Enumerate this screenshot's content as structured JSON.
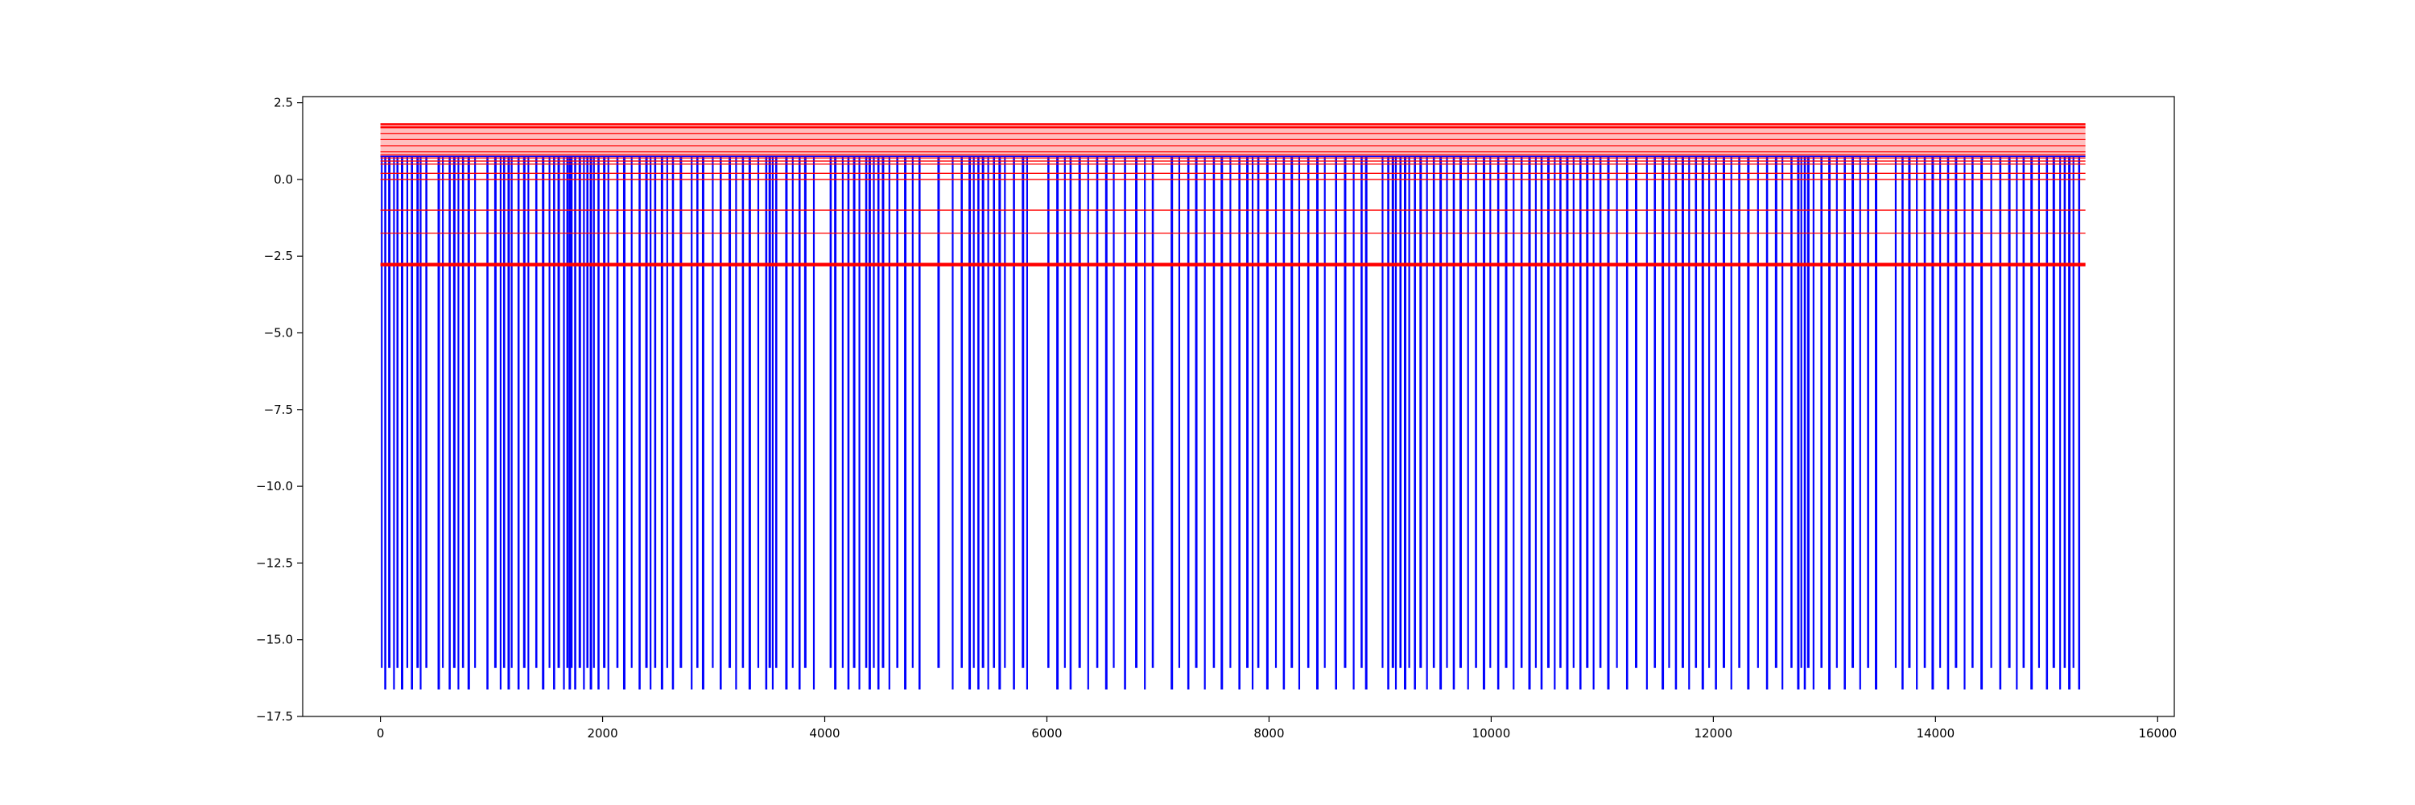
{
  "chart_data": {
    "type": "line",
    "title": "",
    "xlabel": "",
    "ylabel": "",
    "xlim": [
      -700,
      16150
    ],
    "ylim": [
      -17.5,
      2.7
    ],
    "x_ticks": [
      0,
      2000,
      4000,
      6000,
      8000,
      10000,
      12000,
      14000,
      16000
    ],
    "x_tick_labels": [
      "0",
      "2000",
      "4000",
      "6000",
      "8000",
      "10000",
      "12000",
      "14000",
      "16000"
    ],
    "y_ticks": [
      2.5,
      0.0,
      -2.5,
      -5.0,
      -7.5,
      -10.0,
      -12.5,
      -15.0,
      -17.5
    ],
    "y_tick_labels": [
      "2.5",
      "0.0",
      "−2.5",
      "−5.0",
      "−7.5",
      "−10.0",
      "−12.5",
      "−15.0",
      "−17.5"
    ],
    "grid": false,
    "legend": "none",
    "colors": {
      "signal": "#0000ff",
      "levels": "#ff0000",
      "band": "#ffc0c0"
    },
    "band": {
      "y_low": 0.8,
      "y_high": 1.8,
      "x_start": 0,
      "x_end": 15350
    },
    "series": [
      {
        "kind": "step",
        "color": "#0000ff",
        "x_start": 0,
        "x_end": 15350,
        "baseline": 0.75,
        "low_values": [
          -15.9,
          -16.6
        ],
        "dip_positions": [
          10,
          40,
          75,
          120,
          150,
          190,
          240,
          280,
          330,
          360,
          410,
          520,
          560,
          620,
          660,
          700,
          740,
          790,
          850,
          960,
          1030,
          1080,
          1110,
          1150,
          1180,
          1240,
          1290,
          1330,
          1400,
          1460,
          1520,
          1560,
          1600,
          1650,
          1680,
          1700,
          1720,
          1750,
          1790,
          1830,
          1860,
          1890,
          1920,
          1960,
          2010,
          2050,
          2130,
          2190,
          2260,
          2330,
          2390,
          2430,
          2470,
          2530,
          2580,
          2630,
          2700,
          2800,
          2850,
          2900,
          2990,
          3060,
          3140,
          3200,
          3260,
          3320,
          3400,
          3470,
          3500,
          3530,
          3560,
          3650,
          3710,
          3770,
          3820,
          3900,
          4050,
          4090,
          4160,
          4210,
          4260,
          4310,
          4370,
          4400,
          4440,
          4480,
          4520,
          4580,
          4650,
          4720,
          4790,
          4850,
          5020,
          5150,
          5230,
          5300,
          5340,
          5380,
          5420,
          5470,
          5520,
          5570,
          5620,
          5700,
          5780,
          5820,
          6010,
          6090,
          6160,
          6210,
          6290,
          6370,
          6450,
          6530,
          6600,
          6700,
          6800,
          6880,
          6950,
          7120,
          7190,
          7270,
          7340,
          7420,
          7500,
          7570,
          7650,
          7730,
          7800,
          7850,
          7900,
          7980,
          8060,
          8130,
          8200,
          8270,
          8350,
          8430,
          8500,
          8600,
          8680,
          8760,
          8830,
          8870,
          9020,
          9070,
          9110,
          9140,
          9180,
          9220,
          9260,
          9310,
          9360,
          9420,
          9480,
          9540,
          9600,
          9660,
          9720,
          9790,
          9860,
          9930,
          9990,
          10060,
          10130,
          10200,
          10270,
          10340,
          10400,
          10450,
          10510,
          10570,
          10620,
          10680,
          10740,
          10800,
          10860,
          10920,
          10980,
          11050,
          11130,
          11220,
          11300,
          11400,
          11470,
          11540,
          11600,
          11660,
          11720,
          11780,
          11840,
          11900,
          11960,
          12020,
          12090,
          12160,
          12230,
          12310,
          12400,
          12480,
          12560,
          12620,
          12700,
          12760,
          12790,
          12820,
          12850,
          12900,
          12970,
          13040,
          13110,
          13180,
          13250,
          13320,
          13390,
          13460,
          13640,
          13700,
          13760,
          13830,
          13900,
          13970,
          14040,
          14110,
          14180,
          14260,
          14330,
          14410,
          14500,
          14580,
          14660,
          14730,
          14790,
          14860,
          14930,
          15000,
          15060,
          15120,
          15160,
          15200,
          15240,
          15290
        ]
      },
      {
        "kind": "horizontal_levels",
        "color": "#ff0000",
        "x_start": 0,
        "x_end": 15350,
        "values": [
          1.8,
          1.7,
          1.5,
          1.3,
          1.1,
          0.9,
          0.8,
          0.7,
          0.6,
          0.5,
          0.2,
          0.0,
          -1.0,
          -1.75,
          -2.8,
          -2.75
        ]
      }
    ]
  }
}
